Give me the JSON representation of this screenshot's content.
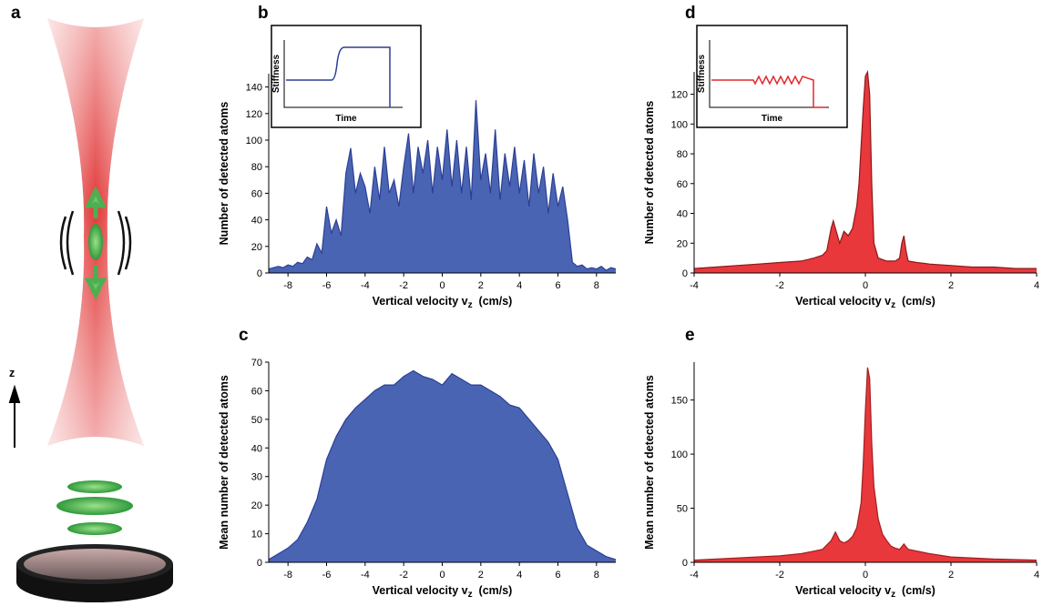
{
  "diagram": {
    "label": "a",
    "axis_label": "z"
  },
  "chart_data": [
    {
      "type": "area",
      "label": "b",
      "color": "#4a64b4",
      "stroke": "#2c3f94",
      "y_label": "Number of detected atoms",
      "x_label": {
        "main": "Vertical velocity v",
        "sub": "z",
        "unit": "(cm/s)"
      },
      "inset": {
        "y_label": "Stiffness",
        "x_label": "Time"
      },
      "xlim": [
        -9,
        9
      ],
      "ylim": [
        0,
        150
      ],
      "xticks": [
        -8,
        -6,
        -4,
        -2,
        0,
        2,
        4,
        6,
        8
      ],
      "yticks": [
        0,
        20,
        40,
        60,
        80,
        100,
        120,
        140
      ],
      "x": [
        -9,
        -8.75,
        -8.5,
        -8.25,
        -8,
        -7.75,
        -7.5,
        -7.25,
        -7,
        -6.75,
        -6.5,
        -6.25,
        -6,
        -5.75,
        -5.5,
        -5.25,
        -5,
        -4.75,
        -4.5,
        -4.25,
        -4,
        -3.75,
        -3.5,
        -3.25,
        -3,
        -2.75,
        -2.5,
        -2.25,
        -2,
        -1.75,
        -1.5,
        -1.25,
        -1,
        -0.75,
        -0.5,
        -0.25,
        0,
        0.25,
        0.5,
        0.75,
        1,
        1.25,
        1.5,
        1.75,
        2,
        2.25,
        2.5,
        2.75,
        3,
        3.25,
        3.5,
        3.75,
        4,
        4.25,
        4.5,
        4.75,
        5,
        5.25,
        5.5,
        5.75,
        6,
        6.25,
        6.5,
        6.75,
        7,
        7.25,
        7.5,
        7.75,
        8,
        8.25,
        8.5,
        8.75,
        9
      ],
      "values": [
        3,
        4,
        5,
        4,
        6,
        5,
        8,
        7,
        12,
        10,
        22,
        15,
        50,
        30,
        40,
        28,
        75,
        94,
        60,
        75,
        65,
        45,
        80,
        55,
        95,
        60,
        70,
        50,
        80,
        105,
        60,
        95,
        75,
        100,
        60,
        95,
        70,
        108,
        65,
        100,
        60,
        95,
        55,
        130,
        70,
        90,
        60,
        108,
        55,
        90,
        65,
        95,
        60,
        85,
        50,
        90,
        60,
        80,
        45,
        75,
        50,
        65,
        40,
        8,
        5,
        6,
        3,
        4,
        3,
        5,
        2,
        4,
        3
      ]
    },
    {
      "type": "area",
      "label": "c",
      "color": "#4a64b4",
      "stroke": "#2c3f94",
      "y_label": "Mean number of detected atoms",
      "x_label": {
        "main": "Vertical velocity v",
        "sub": "z",
        "unit": "(cm/s)"
      },
      "xlim": [
        -9,
        9
      ],
      "ylim": [
        0,
        70
      ],
      "xticks": [
        -8,
        -6,
        -4,
        -2,
        0,
        2,
        4,
        6,
        8
      ],
      "yticks": [
        0,
        10,
        20,
        30,
        40,
        50,
        60,
        70
      ],
      "x": [
        -9,
        -8.5,
        -8,
        -7.5,
        -7,
        -6.5,
        -6,
        -5.5,
        -5,
        -4.5,
        -4,
        -3.5,
        -3,
        -2.5,
        -2,
        -1.5,
        -1,
        -0.5,
        0,
        0.5,
        1,
        1.5,
        2,
        2.5,
        3,
        3.5,
        4,
        4.5,
        5,
        5.5,
        6,
        6.5,
        7,
        7.5,
        8,
        8.5,
        9
      ],
      "values": [
        1,
        3,
        5,
        8,
        14,
        22,
        36,
        44,
        50,
        54,
        57,
        60,
        62,
        62,
        65,
        67,
        65,
        64,
        62,
        66,
        64,
        62,
        62,
        60,
        58,
        55,
        54,
        50,
        46,
        42,
        36,
        24,
        12,
        6,
        4,
        2,
        1
      ]
    },
    {
      "type": "area",
      "label": "d",
      "color": "#e8383c",
      "stroke": "#8b1a1a",
      "y_label": "Number of detected atoms",
      "x_label": {
        "main": "Vertical velocity v",
        "sub": "z",
        "unit": "(cm/s)"
      },
      "inset": {
        "y_label": "Stiffness",
        "x_label": "Time"
      },
      "xlim": [
        -4,
        4
      ],
      "ylim": [
        0,
        135
      ],
      "xticks": [
        -4,
        -2,
        0,
        2,
        4
      ],
      "yticks": [
        0,
        20,
        40,
        60,
        80,
        100,
        120
      ],
      "x": [
        -4,
        -3.5,
        -3,
        -2.5,
        -2,
        -1.5,
        -1.2,
        -1,
        -0.9,
        -0.8,
        -0.75,
        -0.7,
        -0.6,
        -0.5,
        -0.4,
        -0.3,
        -0.2,
        -0.15,
        -0.1,
        -0.05,
        0,
        0.05,
        0.1,
        0.15,
        0.2,
        0.3,
        0.5,
        0.7,
        0.8,
        0.85,
        0.9,
        0.95,
        1,
        1.2,
        1.5,
        2,
        2.5,
        3,
        3.5,
        4
      ],
      "values": [
        3,
        4,
        5,
        6,
        7,
        8,
        10,
        12,
        15,
        30,
        35,
        30,
        20,
        28,
        25,
        30,
        45,
        60,
        85,
        110,
        132,
        135,
        120,
        60,
        20,
        10,
        8,
        8,
        10,
        20,
        25,
        15,
        8,
        7,
        6,
        5,
        4,
        4,
        3,
        3
      ]
    },
    {
      "type": "area",
      "label": "e",
      "color": "#e8383c",
      "stroke": "#a02020",
      "y_label": "Mean number of detected atoms",
      "x_label": {
        "main": "Vertical velocity v",
        "sub": "z",
        "unit": "(cm/s)"
      },
      "xlim": [
        -4,
        4
      ],
      "ylim": [
        0,
        185
      ],
      "xticks": [
        -4,
        -2,
        0,
        2,
        4
      ],
      "yticks": [
        0,
        50,
        100,
        150
      ],
      "x": [
        -4,
        -3,
        -2,
        -1.5,
        -1,
        -0.8,
        -0.7,
        -0.6,
        -0.5,
        -0.4,
        -0.3,
        -0.2,
        -0.1,
        -0.05,
        0,
        0.05,
        0.1,
        0.15,
        0.2,
        0.3,
        0.4,
        0.5,
        0.6,
        0.7,
        0.8,
        0.9,
        1,
        1.5,
        2,
        3,
        4
      ],
      "values": [
        2,
        4,
        6,
        8,
        12,
        20,
        28,
        20,
        18,
        20,
        24,
        32,
        55,
        90,
        140,
        180,
        170,
        110,
        70,
        40,
        26,
        20,
        15,
        13,
        12,
        17,
        12,
        8,
        5,
        3,
        2
      ]
    }
  ]
}
